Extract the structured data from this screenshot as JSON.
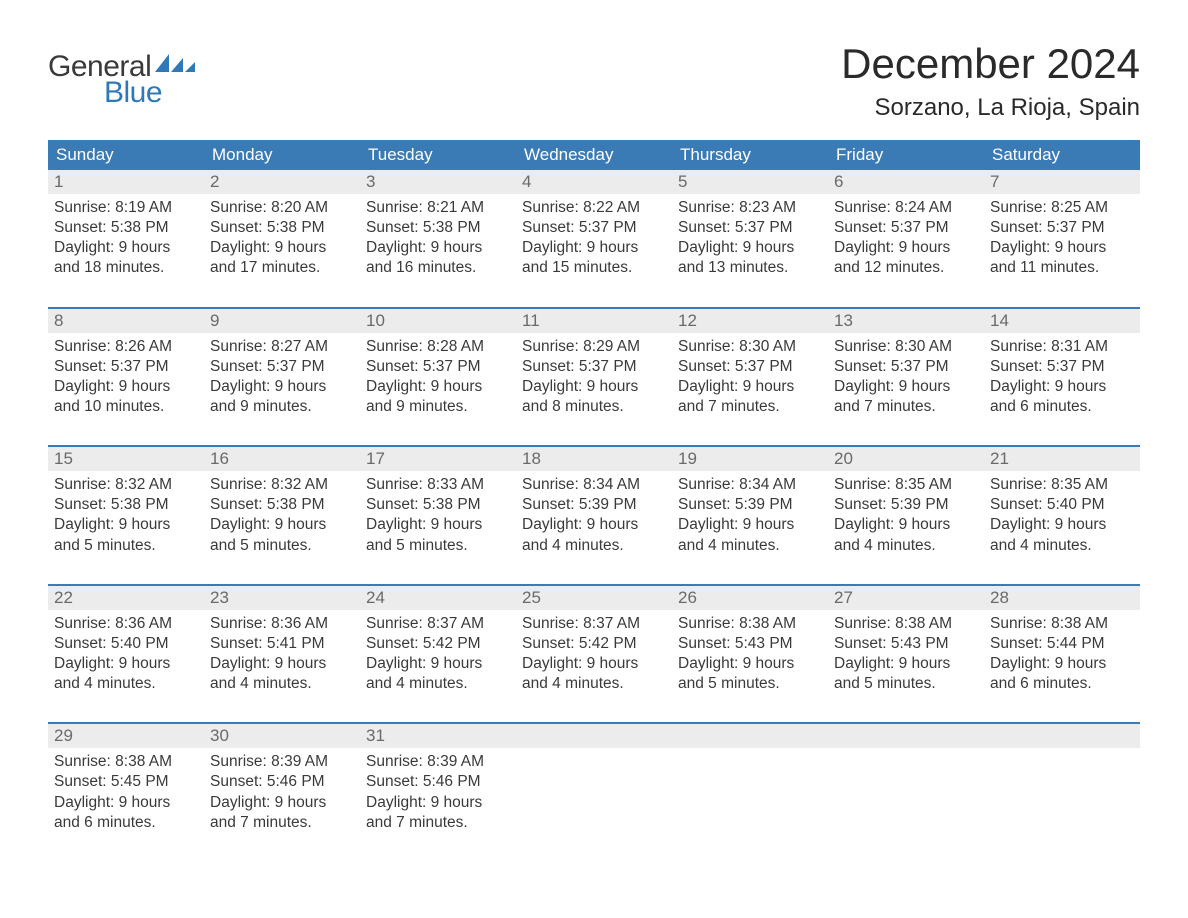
{
  "logo": {
    "general": "General",
    "blue": "Blue"
  },
  "title": "December 2024",
  "location": "Sorzano, La Rioja, Spain",
  "colors": {
    "header_bg": "#3a7ab5",
    "header_text": "#ffffff",
    "daynum_bg": "#ececec",
    "daynum_text": "#6a6a6a",
    "body_text": "#3a3a3a",
    "logo_blue": "#2f79b9"
  },
  "weekdays": [
    "Sunday",
    "Monday",
    "Tuesday",
    "Wednesday",
    "Thursday",
    "Friday",
    "Saturday"
  ],
  "weeks": [
    [
      {
        "n": "1",
        "sunrise": "Sunrise: 8:19 AM",
        "sunset": "Sunset: 5:38 PM",
        "d1": "Daylight: 9 hours",
        "d2": "and 18 minutes."
      },
      {
        "n": "2",
        "sunrise": "Sunrise: 8:20 AM",
        "sunset": "Sunset: 5:38 PM",
        "d1": "Daylight: 9 hours",
        "d2": "and 17 minutes."
      },
      {
        "n": "3",
        "sunrise": "Sunrise: 8:21 AM",
        "sunset": "Sunset: 5:38 PM",
        "d1": "Daylight: 9 hours",
        "d2": "and 16 minutes."
      },
      {
        "n": "4",
        "sunrise": "Sunrise: 8:22 AM",
        "sunset": "Sunset: 5:37 PM",
        "d1": "Daylight: 9 hours",
        "d2": "and 15 minutes."
      },
      {
        "n": "5",
        "sunrise": "Sunrise: 8:23 AM",
        "sunset": "Sunset: 5:37 PM",
        "d1": "Daylight: 9 hours",
        "d2": "and 13 minutes."
      },
      {
        "n": "6",
        "sunrise": "Sunrise: 8:24 AM",
        "sunset": "Sunset: 5:37 PM",
        "d1": "Daylight: 9 hours",
        "d2": "and 12 minutes."
      },
      {
        "n": "7",
        "sunrise": "Sunrise: 8:25 AM",
        "sunset": "Sunset: 5:37 PM",
        "d1": "Daylight: 9 hours",
        "d2": "and 11 minutes."
      }
    ],
    [
      {
        "n": "8",
        "sunrise": "Sunrise: 8:26 AM",
        "sunset": "Sunset: 5:37 PM",
        "d1": "Daylight: 9 hours",
        "d2": "and 10 minutes."
      },
      {
        "n": "9",
        "sunrise": "Sunrise: 8:27 AM",
        "sunset": "Sunset: 5:37 PM",
        "d1": "Daylight: 9 hours",
        "d2": "and 9 minutes."
      },
      {
        "n": "10",
        "sunrise": "Sunrise: 8:28 AM",
        "sunset": "Sunset: 5:37 PM",
        "d1": "Daylight: 9 hours",
        "d2": "and 9 minutes."
      },
      {
        "n": "11",
        "sunrise": "Sunrise: 8:29 AM",
        "sunset": "Sunset: 5:37 PM",
        "d1": "Daylight: 9 hours",
        "d2": "and 8 minutes."
      },
      {
        "n": "12",
        "sunrise": "Sunrise: 8:30 AM",
        "sunset": "Sunset: 5:37 PM",
        "d1": "Daylight: 9 hours",
        "d2": "and 7 minutes."
      },
      {
        "n": "13",
        "sunrise": "Sunrise: 8:30 AM",
        "sunset": "Sunset: 5:37 PM",
        "d1": "Daylight: 9 hours",
        "d2": "and 7 minutes."
      },
      {
        "n": "14",
        "sunrise": "Sunrise: 8:31 AM",
        "sunset": "Sunset: 5:37 PM",
        "d1": "Daylight: 9 hours",
        "d2": "and 6 minutes."
      }
    ],
    [
      {
        "n": "15",
        "sunrise": "Sunrise: 8:32 AM",
        "sunset": "Sunset: 5:38 PM",
        "d1": "Daylight: 9 hours",
        "d2": "and 5 minutes."
      },
      {
        "n": "16",
        "sunrise": "Sunrise: 8:32 AM",
        "sunset": "Sunset: 5:38 PM",
        "d1": "Daylight: 9 hours",
        "d2": "and 5 minutes."
      },
      {
        "n": "17",
        "sunrise": "Sunrise: 8:33 AM",
        "sunset": "Sunset: 5:38 PM",
        "d1": "Daylight: 9 hours",
        "d2": "and 5 minutes."
      },
      {
        "n": "18",
        "sunrise": "Sunrise: 8:34 AM",
        "sunset": "Sunset: 5:39 PM",
        "d1": "Daylight: 9 hours",
        "d2": "and 4 minutes."
      },
      {
        "n": "19",
        "sunrise": "Sunrise: 8:34 AM",
        "sunset": "Sunset: 5:39 PM",
        "d1": "Daylight: 9 hours",
        "d2": "and 4 minutes."
      },
      {
        "n": "20",
        "sunrise": "Sunrise: 8:35 AM",
        "sunset": "Sunset: 5:39 PM",
        "d1": "Daylight: 9 hours",
        "d2": "and 4 minutes."
      },
      {
        "n": "21",
        "sunrise": "Sunrise: 8:35 AM",
        "sunset": "Sunset: 5:40 PM",
        "d1": "Daylight: 9 hours",
        "d2": "and 4 minutes."
      }
    ],
    [
      {
        "n": "22",
        "sunrise": "Sunrise: 8:36 AM",
        "sunset": "Sunset: 5:40 PM",
        "d1": "Daylight: 9 hours",
        "d2": "and 4 minutes."
      },
      {
        "n": "23",
        "sunrise": "Sunrise: 8:36 AM",
        "sunset": "Sunset: 5:41 PM",
        "d1": "Daylight: 9 hours",
        "d2": "and 4 minutes."
      },
      {
        "n": "24",
        "sunrise": "Sunrise: 8:37 AM",
        "sunset": "Sunset: 5:42 PM",
        "d1": "Daylight: 9 hours",
        "d2": "and 4 minutes."
      },
      {
        "n": "25",
        "sunrise": "Sunrise: 8:37 AM",
        "sunset": "Sunset: 5:42 PM",
        "d1": "Daylight: 9 hours",
        "d2": "and 4 minutes."
      },
      {
        "n": "26",
        "sunrise": "Sunrise: 8:38 AM",
        "sunset": "Sunset: 5:43 PM",
        "d1": "Daylight: 9 hours",
        "d2": "and 5 minutes."
      },
      {
        "n": "27",
        "sunrise": "Sunrise: 8:38 AM",
        "sunset": "Sunset: 5:43 PM",
        "d1": "Daylight: 9 hours",
        "d2": "and 5 minutes."
      },
      {
        "n": "28",
        "sunrise": "Sunrise: 8:38 AM",
        "sunset": "Sunset: 5:44 PM",
        "d1": "Daylight: 9 hours",
        "d2": "and 6 minutes."
      }
    ],
    [
      {
        "n": "29",
        "sunrise": "Sunrise: 8:38 AM",
        "sunset": "Sunset: 5:45 PM",
        "d1": "Daylight: 9 hours",
        "d2": "and 6 minutes."
      },
      {
        "n": "30",
        "sunrise": "Sunrise: 8:39 AM",
        "sunset": "Sunset: 5:46 PM",
        "d1": "Daylight: 9 hours",
        "d2": "and 7 minutes."
      },
      {
        "n": "31",
        "sunrise": "Sunrise: 8:39 AM",
        "sunset": "Sunset: 5:46 PM",
        "d1": "Daylight: 9 hours",
        "d2": "and 7 minutes."
      },
      {
        "n": "",
        "empty": true
      },
      {
        "n": "",
        "empty": true
      },
      {
        "n": "",
        "empty": true
      },
      {
        "n": "",
        "empty": true
      }
    ]
  ]
}
